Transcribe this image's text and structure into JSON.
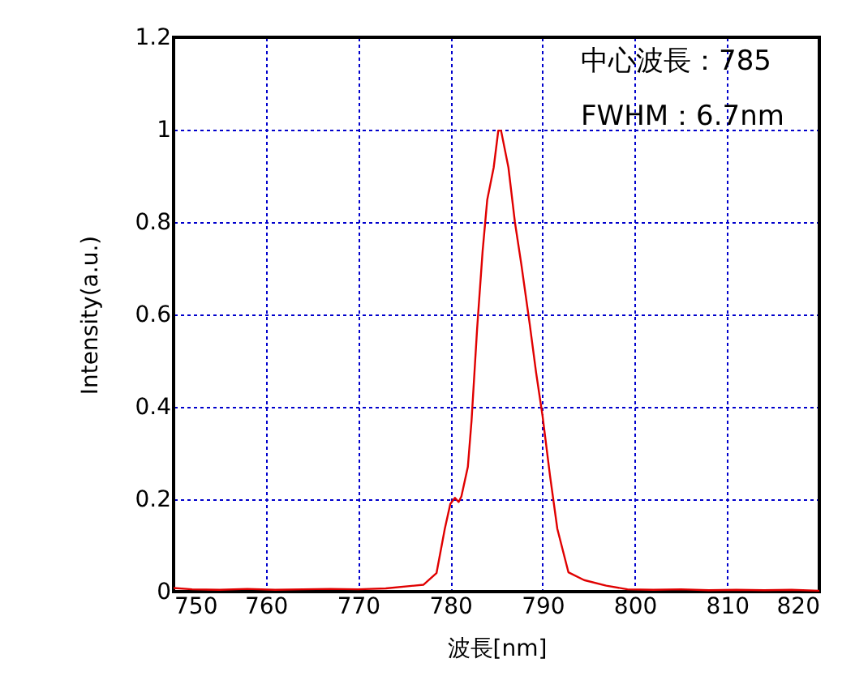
{
  "chart_data": {
    "type": "line",
    "xlabel": "波長[nm]",
    "ylabel": "Intensity(a.u.)",
    "annotations": [
      "中心波長：785",
      "FWHM：6.7nm"
    ],
    "xlim": [
      750,
      820
    ],
    "xticks": [
      750,
      760,
      770,
      780,
      790,
      800,
      810,
      820
    ],
    "ylim": [
      0,
      1.2
    ],
    "yticks": [
      0,
      0.2,
      0.4,
      0.6,
      0.8,
      1,
      1.2
    ],
    "grid": true,
    "marker": "none",
    "line_style": "solid",
    "series": [
      {
        "color": "#e00000",
        "x": [
          750,
          752,
          755,
          758,
          761,
          764,
          767,
          770,
          773,
          777.1,
          778.5,
          779.4,
          780,
          780.5,
          780.9,
          781.2,
          781.9,
          782.3,
          782.9,
          783.5,
          784.0,
          784.7,
          785.2,
          785.5,
          786.3,
          787.0,
          787.7,
          788.6,
          789.3,
          790.0,
          790.8,
          791.6,
          792.8,
          794.5,
          796.9,
          799.2,
          802,
          805,
          808,
          811,
          814,
          817,
          820
        ],
        "values": [
          0.008,
          0.005,
          0.004,
          0.006,
          0.004,
          0.005,
          0.006,
          0.005,
          0.007,
          0.015,
          0.04,
          0.136,
          0.19,
          0.203,
          0.194,
          0.206,
          0.27,
          0.37,
          0.568,
          0.737,
          0.848,
          0.918,
          0.998,
          0.998,
          0.918,
          0.8,
          0.708,
          0.58,
          0.474,
          0.38,
          0.252,
          0.136,
          0.042,
          0.025,
          0.013,
          0.005,
          0.004,
          0.005,
          0.003,
          0.004,
          0.003,
          0.004,
          0.002
        ]
      }
    ]
  }
}
